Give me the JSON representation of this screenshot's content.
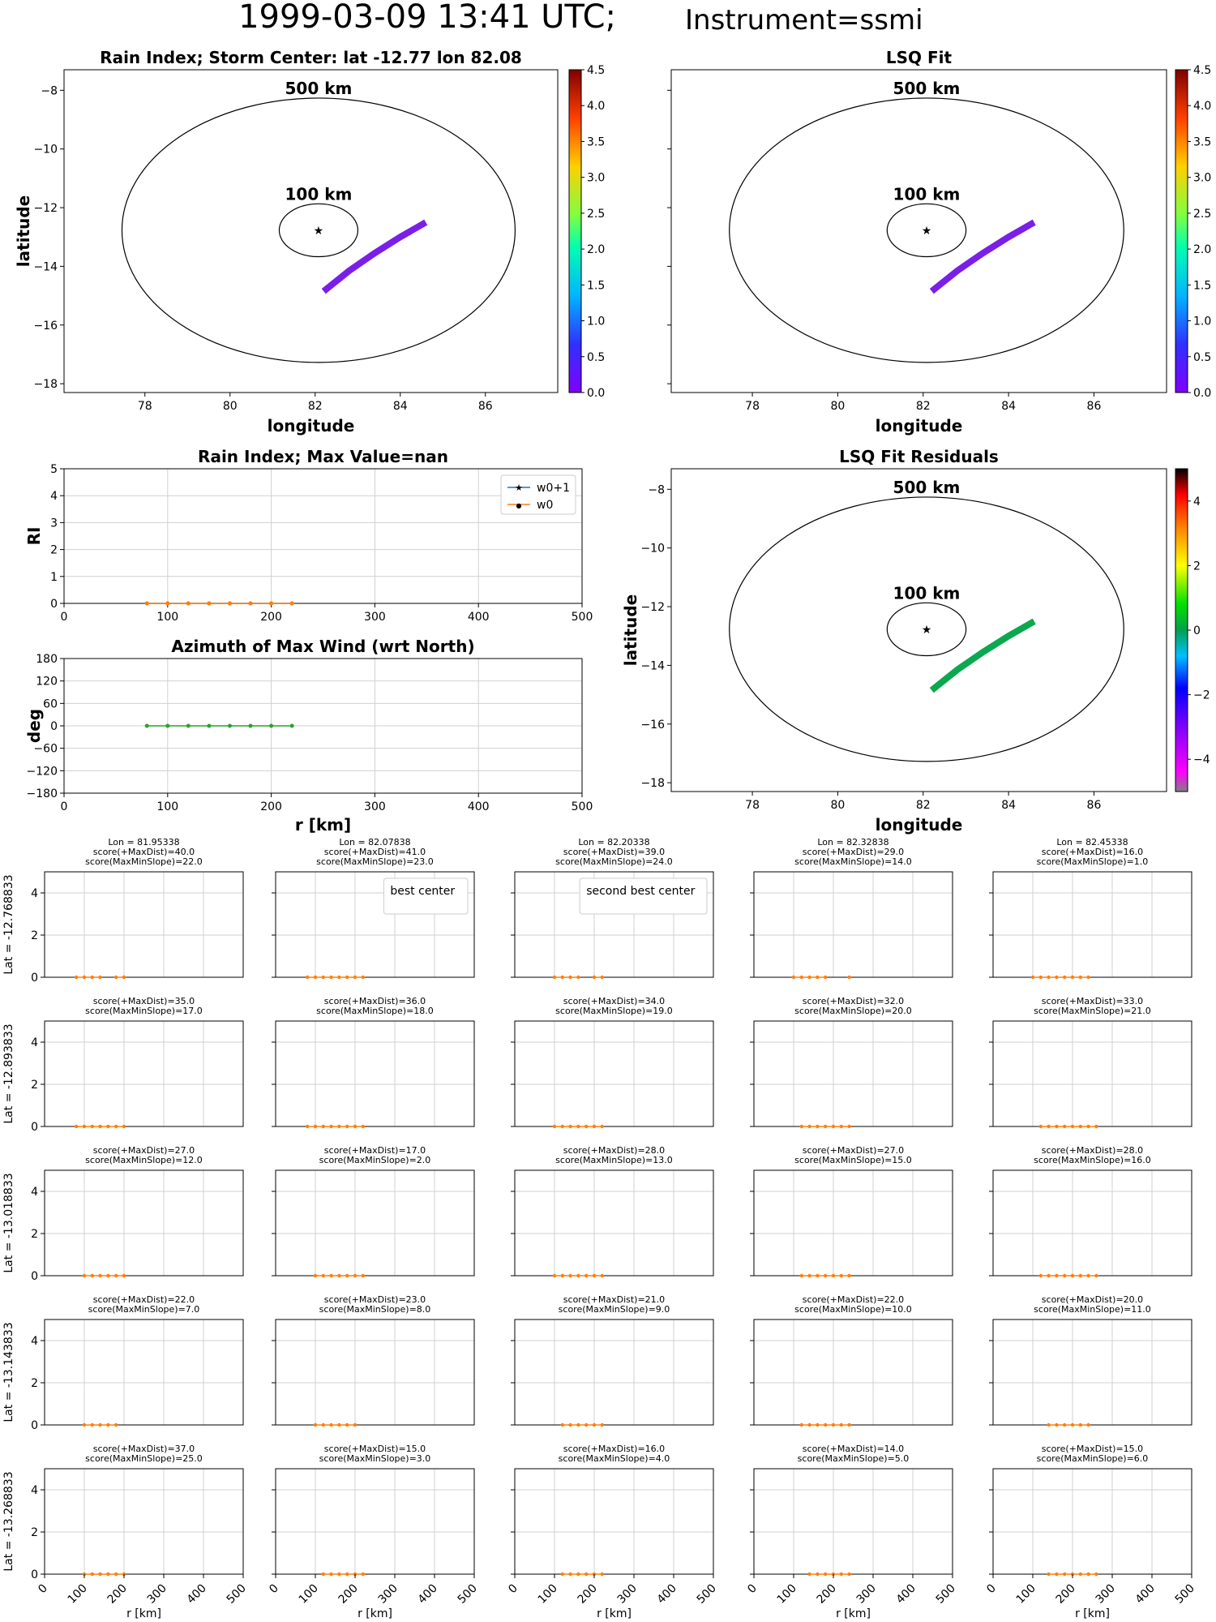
{
  "figure": {
    "title_main": "1999-03-09 13:41 UTC;",
    "title_instrument": "Instrument=ssmi"
  },
  "chart_data": [
    {
      "id": "rain-index-map",
      "type": "map",
      "title": "Rain Index; Storm Center: lat -12.77 lon 82.08",
      "xlabel": "longitude",
      "ylabel": "latitude",
      "xlim": [
        76.1,
        87.7
      ],
      "ylim": [
        -18.3,
        -7.3
      ],
      "xticks": [
        78,
        80,
        82,
        84,
        86
      ],
      "yticks": [
        -8,
        -10,
        -12,
        -14,
        -16,
        -18
      ],
      "center": {
        "lon": 82.08,
        "lat": -12.77
      },
      "rings": [
        {
          "label": "500 km",
          "radius_km": 500
        },
        {
          "label": "100 km",
          "radius_km": 100
        }
      ],
      "swath": {
        "lon": [
          82.2,
          82.8,
          83.4,
          84.0,
          84.6
        ],
        "lat": [
          -14.85,
          -14.15,
          -13.55,
          -13.0,
          -12.5
        ],
        "color": "#7a1fe8"
      },
      "colorbar": {
        "min": 0,
        "max": 4.5,
        "ticks": [
          "0.0",
          "0.5",
          "1.0",
          "1.5",
          "2.0",
          "2.5",
          "3.0",
          "3.5",
          "4.0",
          "4.5"
        ],
        "colormap": "rainbow"
      }
    },
    {
      "id": "lsq-fit-map",
      "type": "map",
      "title": "LSQ Fit",
      "xlabel": "longitude",
      "ylabel": "",
      "xlim": [
        76.1,
        87.7
      ],
      "ylim": [
        -18.3,
        -7.3
      ],
      "xticks": [
        78,
        80,
        82,
        84,
        86
      ],
      "yticks": [],
      "center": {
        "lon": 82.08,
        "lat": -12.77
      },
      "rings": [
        {
          "label": "500 km",
          "radius_km": 500
        },
        {
          "label": "100 km",
          "radius_km": 100
        }
      ],
      "swath": {
        "lon": [
          82.2,
          82.8,
          83.4,
          84.0,
          84.6
        ],
        "lat": [
          -14.85,
          -14.15,
          -13.55,
          -13.0,
          -12.5
        ],
        "color": "#7a1fe8"
      },
      "colorbar": {
        "min": 0,
        "max": 4.5,
        "ticks": [
          "0.0",
          "0.5",
          "1.0",
          "1.5",
          "2.0",
          "2.5",
          "3.0",
          "3.5",
          "4.0",
          "4.5"
        ],
        "colormap": "rainbow"
      }
    },
    {
      "id": "lsq-fit-residuals-map",
      "type": "map",
      "title": "LSQ Fit Residuals",
      "xlabel": "longitude",
      "ylabel": "latitude",
      "xlim": [
        76.1,
        87.7
      ],
      "ylim": [
        -18.3,
        -7.3
      ],
      "xticks": [
        78,
        80,
        82,
        84,
        86
      ],
      "yticks": [
        -8,
        -10,
        -12,
        -14,
        -16,
        -18
      ],
      "center": {
        "lon": 82.08,
        "lat": -12.77
      },
      "rings": [
        {
          "label": "500 km",
          "radius_km": 500
        },
        {
          "label": "100 km",
          "radius_km": 100
        }
      ],
      "swath": {
        "lon": [
          82.2,
          82.8,
          83.4,
          84.0,
          84.6
        ],
        "lat": [
          -14.85,
          -14.15,
          -13.55,
          -13.0,
          -12.5
        ],
        "color": "#0aa84f"
      },
      "colorbar": {
        "min": -5,
        "max": 5,
        "ticks": [
          "4",
          "2",
          "0",
          "−2",
          "−4"
        ],
        "colormap": "residual"
      }
    },
    {
      "id": "rain-index-profile",
      "type": "line",
      "title": "Rain Index; Max Value=nan",
      "xlabel": "",
      "ylabel": "RI",
      "xlim": [
        0,
        500
      ],
      "ylim": [
        0,
        5
      ],
      "xticks": [
        "0",
        "100",
        "200",
        "300",
        "400",
        "500"
      ],
      "yticks": [
        "0",
        "1",
        "2",
        "3",
        "4",
        "5"
      ],
      "grid": true,
      "legend": "top-right",
      "series": [
        {
          "name": "w0+1",
          "color": "#1f77b4",
          "marker": "star",
          "x": [
            80,
            100,
            120,
            140,
            160,
            180,
            200,
            220
          ],
          "y": [
            0,
            0,
            0,
            0,
            0,
            0,
            0,
            0
          ]
        },
        {
          "name": "w0",
          "color": "#ff7f0e",
          "marker": "dot",
          "x": [
            80,
            100,
            120,
            140,
            160,
            180,
            200,
            220
          ],
          "y": [
            0,
            0,
            0,
            0,
            0,
            0,
            0,
            0
          ]
        }
      ]
    },
    {
      "id": "azimuth-profile",
      "type": "line",
      "title": "Azimuth of Max Wind (wrt North)",
      "xlabel": "r [km]",
      "ylabel": "deg",
      "xlim": [
        0,
        500
      ],
      "ylim": [
        -180,
        180
      ],
      "xticks": [
        "0",
        "100",
        "200",
        "300",
        "400",
        "500"
      ],
      "yticks": [
        "180",
        "120",
        "60",
        "0",
        "−60",
        "−120",
        "−180"
      ],
      "grid": true,
      "series": [
        {
          "color": "#2ca02c",
          "marker": "dot",
          "x": [
            80,
            100,
            120,
            140,
            160,
            180,
            200,
            220
          ],
          "y": [
            0,
            0,
            0,
            0,
            0,
            0,
            0,
            0
          ]
        }
      ]
    },
    {
      "id": "center-search-grid",
      "type": "line",
      "xlabel": "r [km]",
      "xlim": [
        0,
        500
      ],
      "ylim": [
        0,
        5
      ],
      "xticks": [
        "0",
        "100",
        "200",
        "300",
        "400",
        "500"
      ],
      "yticks": [
        "0",
        "2",
        "4"
      ],
      "grid": true,
      "series_color": "#ff7f0e",
      "row_labels": [
        "Lat = -12.768833",
        "Lat = -12.893833",
        "Lat = -13.018833",
        "Lat = -13.143833",
        "Lat = -13.268833"
      ],
      "panels": [
        [
          {
            "lines": [
              "Lon = 81.95338",
              "score(+MaxDist)=40.0",
              "score(MaxMinSlope)=22.0"
            ],
            "color": "#000000",
            "x": [
              80,
              100,
              120,
              140,
              180,
              200
            ]
          },
          {
            "lines": [
              "Lon = 82.07838",
              "score(+MaxDist)=41.0",
              "score(MaxMinSlope)=23.0"
            ],
            "color": "#800080",
            "legend": "best center",
            "x": [
              80,
              100,
              120,
              140,
              160,
              180,
              200,
              220
            ]
          },
          {
            "lines": [
              "Lon = 82.20338",
              "score(+MaxDist)=39.0",
              "score(MaxMinSlope)=24.0"
            ],
            "color": "#ff0000",
            "legend": "second best center",
            "x": [
              100,
              120,
              140,
              160,
              200,
              220
            ]
          },
          {
            "lines": [
              "Lon = 82.32838",
              "score(+MaxDist)=29.0",
              "score(MaxMinSlope)=14.0"
            ],
            "color": "#000000",
            "x": [
              100,
              120,
              140,
              160,
              180,
              240
            ]
          },
          {
            "lines": [
              "Lon = 82.45338",
              "score(+MaxDist)=16.0",
              "score(MaxMinSlope)=1.0"
            ],
            "color": "#000000",
            "x": [
              100,
              120,
              140,
              160,
              180,
              200,
              220,
              240
            ]
          }
        ],
        [
          {
            "lines": [
              "score(+MaxDist)=35.0",
              "score(MaxMinSlope)=17.0"
            ],
            "color": "#000000",
            "x": [
              80,
              100,
              120,
              140,
              160,
              180,
              200
            ]
          },
          {
            "lines": [
              "score(+MaxDist)=36.0",
              "score(MaxMinSlope)=18.0"
            ],
            "color": "#000000",
            "x": [
              80,
              100,
              120,
              140,
              160,
              180,
              200,
              220
            ]
          },
          {
            "lines": [
              "score(+MaxDist)=34.0",
              "score(MaxMinSlope)=19.0"
            ],
            "color": "#000000",
            "x": [
              100,
              120,
              140,
              160,
              180,
              200,
              220
            ]
          },
          {
            "lines": [
              "score(+MaxDist)=32.0",
              "score(MaxMinSlope)=20.0"
            ],
            "color": "#000000",
            "x": [
              120,
              140,
              160,
              180,
              200,
              220,
              240
            ]
          },
          {
            "lines": [
              "score(+MaxDist)=33.0",
              "score(MaxMinSlope)=21.0"
            ],
            "color": "#000000",
            "x": [
              120,
              140,
              160,
              180,
              200,
              220,
              240,
              260
            ]
          }
        ],
        [
          {
            "lines": [
              "score(+MaxDist)=27.0",
              "score(MaxMinSlope)=12.0"
            ],
            "color": "#000000",
            "x": [
              100,
              120,
              140,
              160,
              180,
              200
            ]
          },
          {
            "lines": [
              "score(+MaxDist)=17.0",
              "score(MaxMinSlope)=2.0"
            ],
            "color": "#000000",
            "x": [
              100,
              120,
              140,
              160,
              180,
              200,
              220
            ]
          },
          {
            "lines": [
              "score(+MaxDist)=28.0",
              "score(MaxMinSlope)=13.0"
            ],
            "color": "#000000",
            "x": [
              100,
              120,
              140,
              160,
              180,
              200,
              220
            ]
          },
          {
            "lines": [
              "score(+MaxDist)=27.0",
              "score(MaxMinSlope)=15.0"
            ],
            "color": "#000000",
            "x": [
              120,
              140,
              160,
              180,
              200,
              220,
              240
            ]
          },
          {
            "lines": [
              "score(+MaxDist)=28.0",
              "score(MaxMinSlope)=16.0"
            ],
            "color": "#000000",
            "x": [
              120,
              140,
              160,
              180,
              200,
              220,
              240,
              260
            ]
          }
        ],
        [
          {
            "lines": [
              "score(+MaxDist)=22.0",
              "score(MaxMinSlope)=7.0"
            ],
            "color": "#000000",
            "x": [
              100,
              120,
              140,
              160,
              180
            ]
          },
          {
            "lines": [
              "score(+MaxDist)=23.0",
              "score(MaxMinSlope)=8.0"
            ],
            "color": "#000000",
            "x": [
              100,
              120,
              140,
              160,
              180,
              200
            ]
          },
          {
            "lines": [
              "score(+MaxDist)=21.0",
              "score(MaxMinSlope)=9.0"
            ],
            "color": "#000000",
            "x": [
              120,
              140,
              160,
              180,
              200,
              220
            ]
          },
          {
            "lines": [
              "score(+MaxDist)=22.0",
              "score(MaxMinSlope)=10.0"
            ],
            "color": "#000000",
            "x": [
              120,
              140,
              160,
              180,
              200,
              220,
              240
            ]
          },
          {
            "lines": [
              "score(+MaxDist)=20.0",
              "score(MaxMinSlope)=11.0"
            ],
            "color": "#000000",
            "x": [
              140,
              160,
              180,
              200,
              220,
              240
            ]
          }
        ],
        [
          {
            "lines": [
              "score(+MaxDist)=37.0",
              "score(MaxMinSlope)=25.0"
            ],
            "color": "#000000",
            "x": [
              100,
              120,
              140,
              160,
              180,
              200
            ]
          },
          {
            "lines": [
              "score(+MaxDist)=15.0",
              "score(MaxMinSlope)=3.0"
            ],
            "color": "#000000",
            "x": [
              120,
              140,
              160,
              180,
              200,
              220
            ]
          },
          {
            "lines": [
              "score(+MaxDist)=16.0",
              "score(MaxMinSlope)=4.0"
            ],
            "color": "#000000",
            "x": [
              120,
              140,
              160,
              180,
              200,
              220
            ]
          },
          {
            "lines": [
              "score(+MaxDist)=14.0",
              "score(MaxMinSlope)=5.0"
            ],
            "color": "#000000",
            "x": [
              140,
              160,
              180,
              200,
              220,
              240
            ]
          },
          {
            "lines": [
              "score(+MaxDist)=15.0",
              "score(MaxMinSlope)=6.0"
            ],
            "color": "#000000",
            "x": [
              140,
              160,
              180,
              200,
              220,
              240,
              260
            ]
          }
        ]
      ]
    }
  ]
}
